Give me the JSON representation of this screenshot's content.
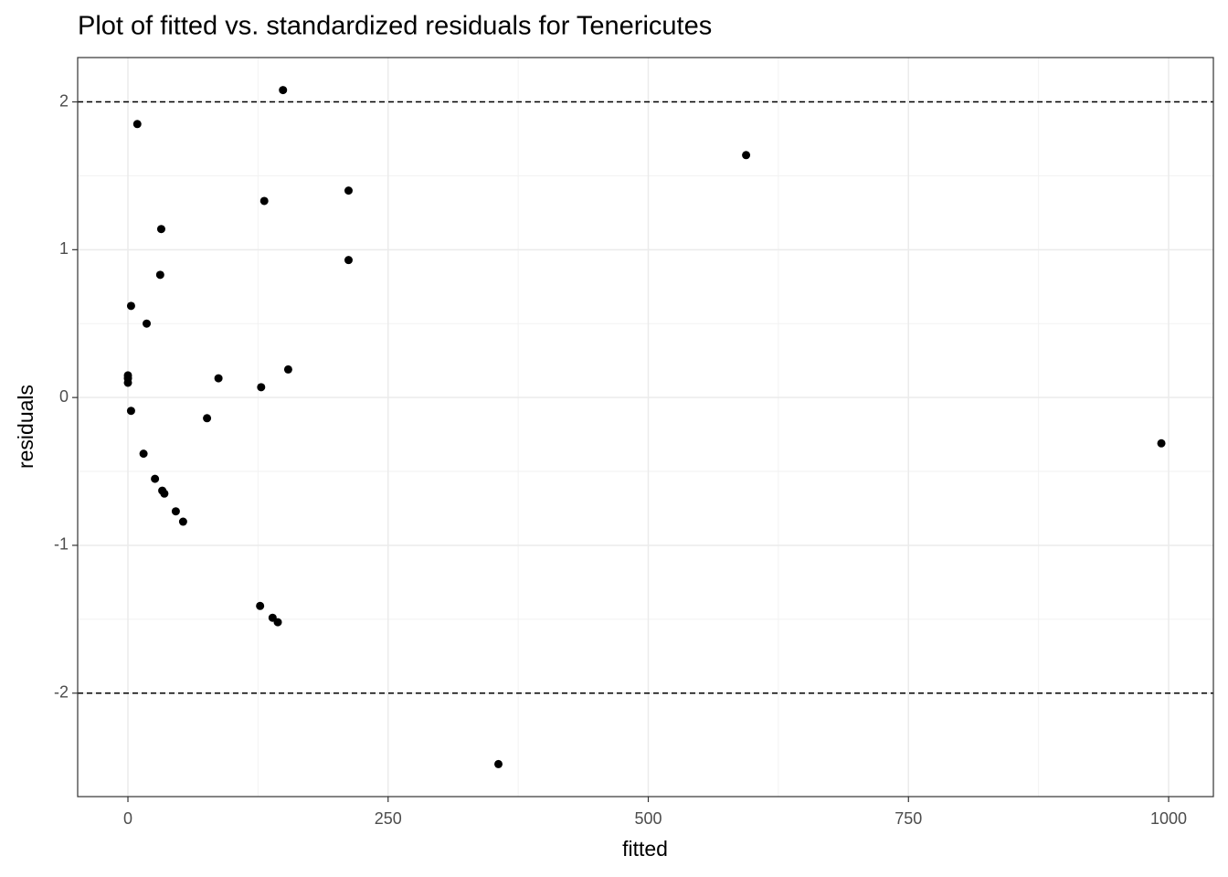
{
  "chart_data": {
    "type": "scatter",
    "title": "Plot of fitted vs. standardized residuals for Tenericutes",
    "x_label": "fitted",
    "y_label": "residuals",
    "color": "#000000",
    "x": [
      149,
      9,
      594,
      212,
      131,
      32,
      212,
      31,
      3,
      18,
      154,
      0,
      0,
      0,
      87,
      128,
      3,
      76,
      993,
      15,
      26,
      33,
      35,
      46,
      53,
      127,
      139,
      144,
      356
    ],
    "values": [
      2.08,
      1.85,
      1.64,
      1.4,
      1.33,
      1.14,
      0.93,
      0.83,
      0.62,
      0.5,
      0.19,
      0.15,
      0.13,
      0.1,
      0.13,
      0.07,
      -0.09,
      -0.14,
      -0.31,
      -0.38,
      -0.55,
      -0.63,
      -0.65,
      -0.77,
      -0.84,
      -1.41,
      -1.49,
      -1.52,
      -2.48
    ],
    "xlim": [
      -48.3,
      1043
    ],
    "ylim": [
      -2.7,
      2.3
    ],
    "xticks": [
      0,
      250,
      500,
      750,
      1000
    ],
    "yticks": [
      -2,
      -1,
      0,
      1,
      2
    ],
    "hlines": [
      2,
      -2
    ],
    "grid": true
  }
}
